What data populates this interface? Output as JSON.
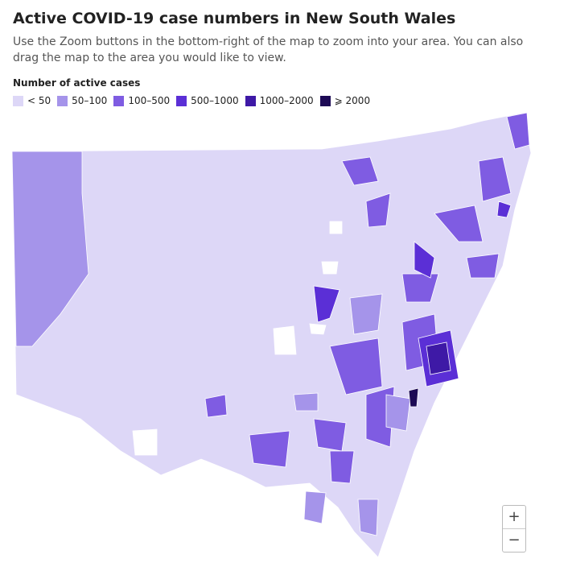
{
  "header": {
    "title": "Active COVID-19 case numbers in New South Wales",
    "subtitle": "Use the Zoom buttons in the bottom-right of the map to zoom into your area. You can also drag the map to the area you would like to view."
  },
  "legend": {
    "title": "Number of active cases",
    "items": [
      {
        "label": "< 50",
        "color": "#ddd7f7"
      },
      {
        "label": "50–100",
        "color": "#a594ea"
      },
      {
        "label": "100–500",
        "color": "#7f5ce2"
      },
      {
        "label": "500–1000",
        "color": "#5b2fd6"
      },
      {
        "label": "1000–2000",
        "color": "#3e19a6"
      },
      {
        "label": "⩾ 2000",
        "color": "#1d0a55"
      }
    ]
  },
  "zoom": {
    "in": "+",
    "out": "−"
  }
}
